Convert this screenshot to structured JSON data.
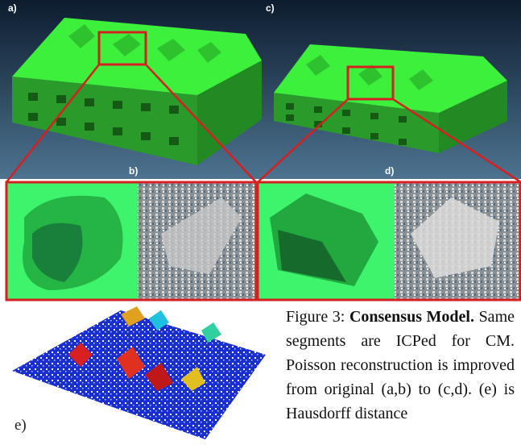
{
  "figure": {
    "panels": {
      "a": "a)",
      "b": "b)",
      "c": "c)",
      "d": "d)",
      "e": "e)"
    }
  },
  "caption": {
    "label": "Figure 3:",
    "title": "Consensus Model.",
    "text": "Same segments are ICPed for CM. Poisson reconstruction is improved from original (a,b) to (c,d). (e) is Hausdorff distance"
  }
}
